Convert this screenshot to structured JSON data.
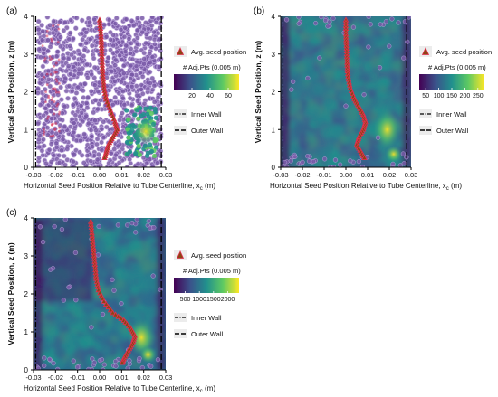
{
  "colors": {
    "viridis": [
      "#440154",
      "#3b528b",
      "#21908d",
      "#5dc963",
      "#fde725"
    ],
    "seed_marker_fill": "#8b4513",
    "seed_marker_edge": "#e0304f",
    "scatter_point": "#7a5aa8",
    "scatter_edge": "#c8b4e6"
  },
  "chart_data": [
    {
      "type": "scatter",
      "panel_label": "(a)",
      "xlabel": "Horizontal Seed Position Relative to Tube Centerline,  x",
      "xlabel_sub": "c",
      "xlabel_unit": "  (m)",
      "ylabel": "Vertical Seed Position, z (m)",
      "xlim": [
        -0.03,
        0.03
      ],
      "ylim": [
        0,
        4
      ],
      "xticks": [
        "-0.03",
        "-0.02",
        "-0.01",
        "0.00",
        "0.01",
        "0.02",
        "0.03"
      ],
      "yticks": [
        "0",
        "1",
        "2",
        "3",
        "4"
      ],
      "legend": {
        "avg_label": "Avg. seed position",
        "cbar_title": "# Adj.Pts (0.005 m)",
        "cbar_ticks": [
          "20",
          "40",
          "60"
        ],
        "cbar_range": [
          0,
          72
        ],
        "inner_wall": "Inner Wall",
        "outer_wall": "Outer Wall"
      },
      "avg_seed_position": {
        "z": [
          3.9,
          3.6,
          3.3,
          3.0,
          2.7,
          2.4,
          2.1,
          1.8,
          1.5,
          1.2,
          1.0,
          0.8,
          0.6,
          0.4,
          0.2
        ],
        "x": [
          0.0,
          0.0005,
          0.0008,
          0.001,
          0.0012,
          0.0015,
          0.002,
          0.003,
          0.005,
          0.007,
          0.008,
          0.006,
          0.004,
          0.003,
          0.002
        ]
      }
    },
    {
      "type": "scatter",
      "panel_label": "(b)",
      "xlabel": "Horizontal Seed Position Relative to Tube Centerline,  x",
      "xlabel_sub": "c",
      "xlabel_unit": "  (m)",
      "ylabel": "Vertical Seed Position, z (m)",
      "xlim": [
        -0.03,
        0.03
      ],
      "ylim": [
        0,
        4
      ],
      "xticks": [
        "-0.03",
        "-0.02",
        "-0.01",
        "0.00",
        "0.01",
        "0.02",
        "0.03"
      ],
      "yticks": [
        "0",
        "1",
        "2",
        "3",
        "4"
      ],
      "legend": {
        "avg_label": "Avg. seed position",
        "cbar_title": "# Adj.Pts (0.005 m)",
        "cbar_ticks": [
          "50",
          "100",
          "150",
          "200",
          "250"
        ],
        "cbar_range": [
          25,
          275
        ],
        "inner_wall": "Inner Wall",
        "outer_wall": "Outer Wall"
      },
      "avg_seed_position": {
        "z": [
          3.9,
          3.6,
          3.3,
          3.0,
          2.7,
          2.4,
          2.1,
          1.8,
          1.6,
          1.4,
          1.2,
          1.0,
          0.8,
          0.6,
          0.4,
          0.2
        ],
        "x": [
          0.0,
          0.0,
          0.0002,
          0.0004,
          0.0006,
          0.001,
          0.002,
          0.004,
          0.006,
          0.008,
          0.009,
          0.008,
          0.006,
          0.005,
          0.007,
          0.009
        ]
      }
    },
    {
      "type": "scatter",
      "panel_label": "(c)",
      "xlabel": "Horizontal Seed Position Relative to Tube Centerline,  x",
      "xlabel_sub": "c",
      "xlabel_unit": "  (m)",
      "ylabel": "Vertical Seed Position, z (m)",
      "xlim": [
        -0.03,
        0.03
      ],
      "ylim": [
        0,
        4
      ],
      "xticks": [
        "-0.03",
        "-0.02",
        "-0.01",
        "0.00",
        "0.01",
        "0.02",
        "0.03"
      ],
      "yticks": [
        "0",
        "1",
        "2",
        "3",
        "4"
      ],
      "legend": {
        "avg_label": "Avg. seed position",
        "cbar_title": "# Adj.Pts (0.005 m)",
        "cbar_ticks": [
          "500",
          "1000",
          "1500",
          "2000"
        ],
        "cbar_range": [
          100,
          2400
        ],
        "inner_wall": "Inner Wall",
        "outer_wall": "Outer Wall"
      },
      "avg_seed_position": {
        "z": [
          3.9,
          3.6,
          3.3,
          3.0,
          2.7,
          2.4,
          2.1,
          1.8,
          1.5,
          1.3,
          1.1,
          0.9,
          0.7,
          0.5,
          0.3,
          0.15
        ],
        "x": [
          -0.004,
          -0.0035,
          -0.003,
          -0.0025,
          -0.002,
          -0.0015,
          -0.0005,
          0.002,
          0.006,
          0.011,
          0.014,
          0.016,
          0.015,
          0.013,
          0.011,
          0.01
        ]
      }
    }
  ]
}
